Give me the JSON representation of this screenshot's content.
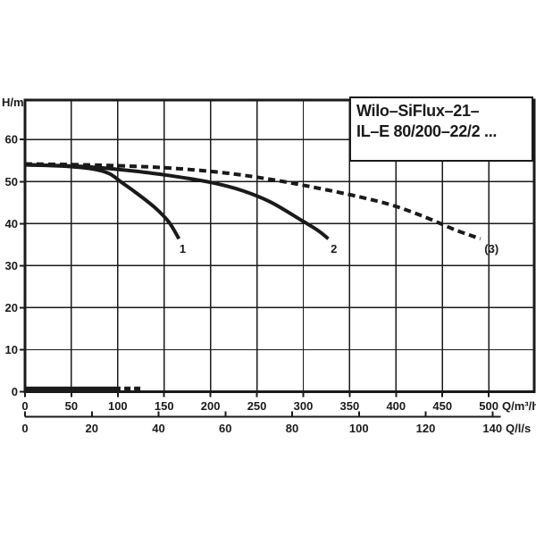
{
  "chart": {
    "title_line1": "Wilo–SiFlux–21–",
    "title_line2": "IL–E 80/200–22/2 ..."
  },
  "chart_data": {
    "type": "line",
    "title": "Wilo–SiFlux–21– IL–E 80/200–22/2 ...",
    "ylabel": "H/m",
    "xlabel": "Q/m³/h",
    "xlabel2": "Q/l/s",
    "xlim": [
      0,
      549
    ],
    "ylim": [
      0,
      69.4
    ],
    "x_ticks": [
      0,
      50,
      100,
      150,
      200,
      250,
      300,
      350,
      400,
      450,
      500
    ],
    "x2_ticks": [
      0,
      20,
      40,
      60,
      80,
      100,
      120,
      140
    ],
    "x2_unit_factor": 3.6,
    "y_ticks": [
      0,
      10,
      20,
      30,
      40,
      50,
      60
    ],
    "grid": true,
    "legend_position": "none",
    "series": [
      {
        "name": "1",
        "style": "solid",
        "label": "1",
        "label_q": 170,
        "label_h": 33,
        "points": [
          [
            0,
            54.0
          ],
          [
            40,
            53.7
          ],
          [
            70,
            53.1
          ],
          [
            90,
            52.0
          ],
          [
            103,
            50.0
          ],
          [
            120,
            47.3
          ],
          [
            140,
            43.8
          ],
          [
            155,
            40.4
          ],
          [
            166,
            36.4
          ]
        ]
      },
      {
        "name": "2",
        "style": "solid",
        "label": "2",
        "label_q": 333,
        "label_h": 33,
        "points": [
          [
            0,
            54.0
          ],
          [
            60,
            53.6
          ],
          [
            110,
            52.7
          ],
          [
            150,
            51.6
          ],
          [
            180,
            50.6
          ],
          [
            205,
            49.6
          ],
          [
            235,
            47.8
          ],
          [
            265,
            45.1
          ],
          [
            295,
            41.2
          ],
          [
            315,
            38.5
          ],
          [
            327,
            36.4
          ]
        ]
      },
      {
        "name": "3",
        "style": "dashed",
        "label": "(3)",
        "label_q": 503,
        "label_h": 33,
        "points": [
          [
            0,
            54.2
          ],
          [
            80,
            53.9
          ],
          [
            150,
            53.3
          ],
          [
            210,
            52.2
          ],
          [
            260,
            50.7
          ],
          [
            310,
            48.7
          ],
          [
            360,
            46.4
          ],
          [
            397,
            44.3
          ],
          [
            432,
            41.5
          ],
          [
            464,
            38.5
          ],
          [
            491,
            36.4
          ]
        ]
      },
      {
        "name": "power-baseline",
        "style": "solid",
        "width": 5,
        "points": [
          [
            0,
            0.7
          ],
          [
            103,
            0.7
          ]
        ]
      },
      {
        "name": "power-baseline-tail",
        "style": "dashed",
        "width": 5,
        "dash": "7 4",
        "points": [
          [
            107,
            0.7
          ],
          [
            126,
            0.7
          ]
        ]
      }
    ]
  }
}
